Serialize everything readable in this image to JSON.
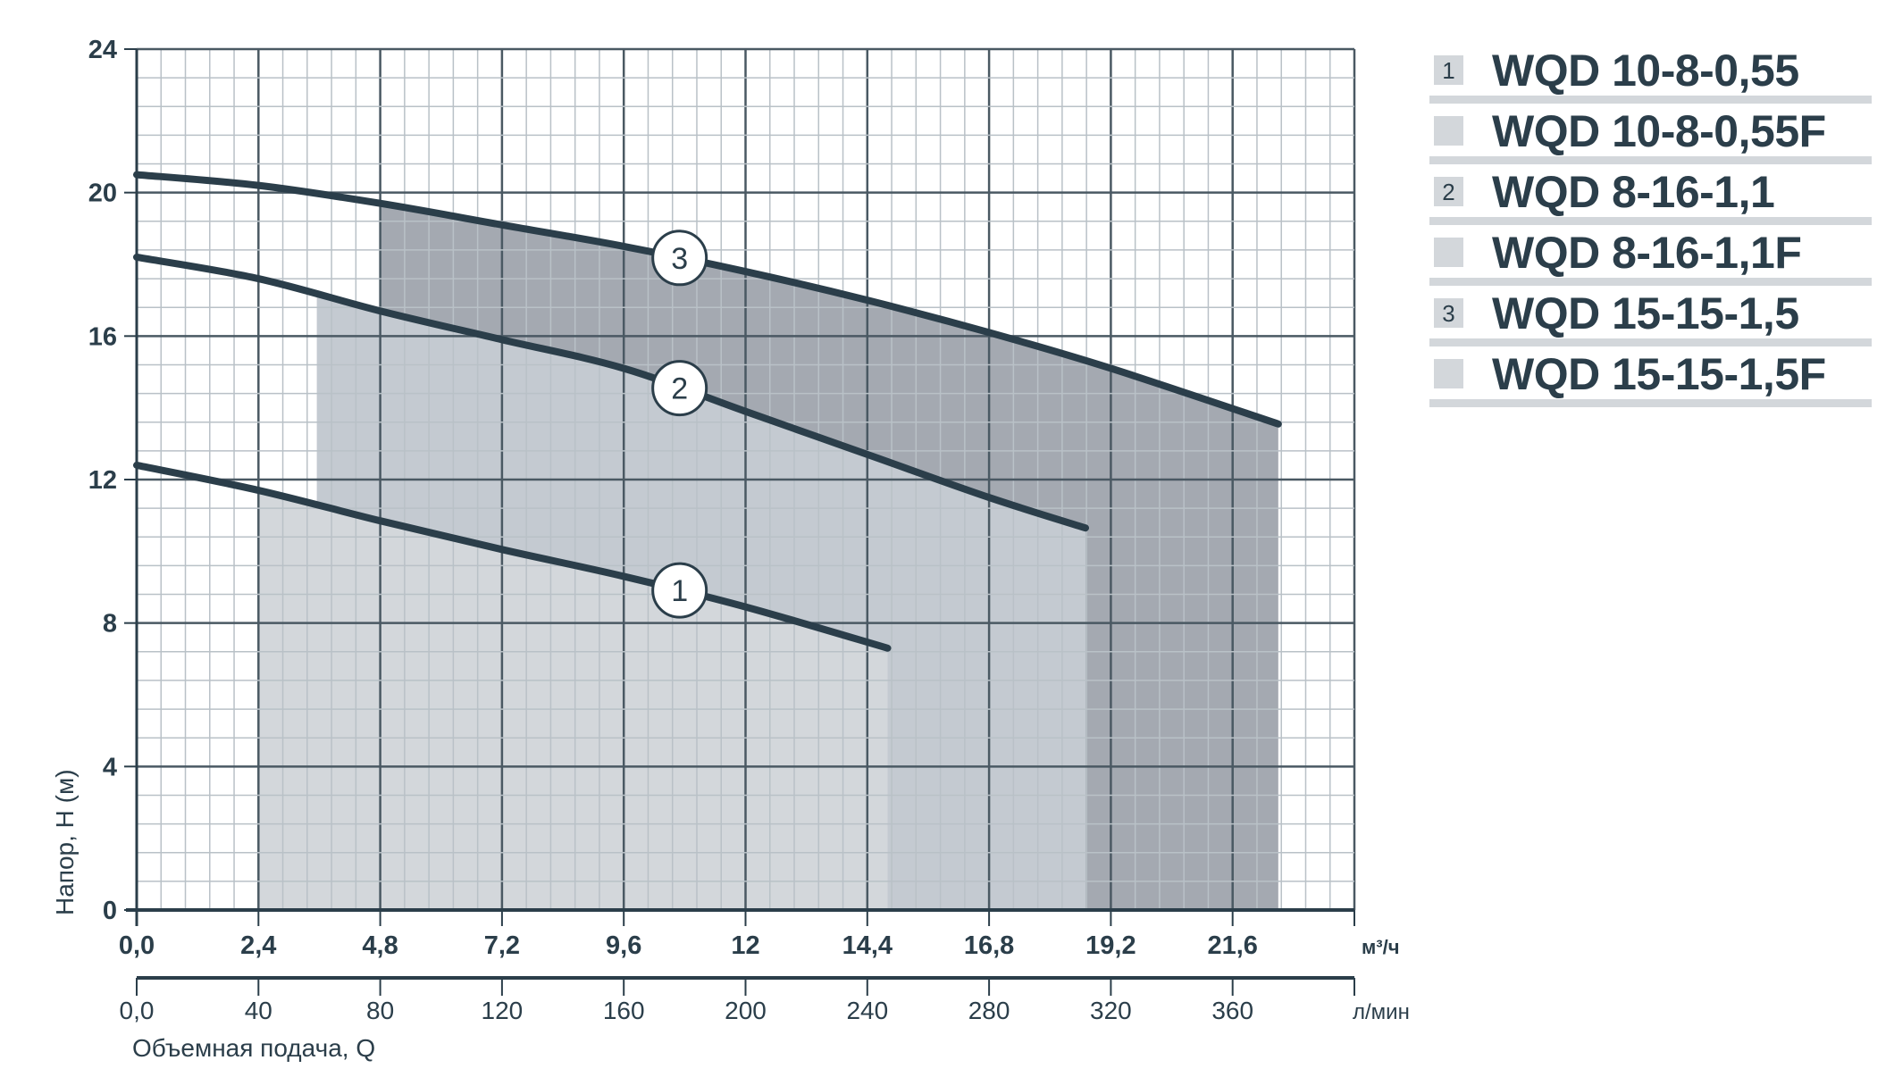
{
  "chart_data": {
    "type": "line",
    "xlabel": "Объемная подача, Q",
    "ylabel": "Напор, Н (м)",
    "x_unit": "м³/ч",
    "x2_unit": "л/мин",
    "xlim": [
      0,
      24
    ],
    "ylim": [
      0,
      24
    ],
    "x_ticks": [
      "0,0",
      "2,4",
      "4,8",
      "7,2",
      "9,6",
      "12",
      "14,4",
      "16,8",
      "19,2",
      "21,6"
    ],
    "x2_ticks": [
      "0,0",
      "40",
      "80",
      "120",
      "160",
      "200",
      "240",
      "280",
      "320",
      "360"
    ],
    "y_ticks": [
      "0",
      "4",
      "8",
      "12",
      "16",
      "20",
      "24"
    ],
    "grid": true,
    "series": [
      {
        "name": "1",
        "x": [
          0,
          2.4,
          4.8,
          7.2,
          9.6,
          12,
          14.8
        ],
        "y": [
          12.4,
          11.7,
          10.85,
          10.05,
          9.3,
          8.45,
          7.3
        ],
        "work_range": [
          2.4,
          14.8
        ],
        "fill": "#d3d7db"
      },
      {
        "name": "2",
        "x": [
          0,
          2.4,
          4.8,
          7.2,
          9.6,
          12,
          14.4,
          16.8,
          18.7
        ],
        "y": [
          18.2,
          17.6,
          16.7,
          15.9,
          15.1,
          13.9,
          12.7,
          11.5,
          10.65
        ],
        "work_range": [
          3.55,
          18.7
        ],
        "fill": "#c4cad1"
      },
      {
        "name": "3",
        "x": [
          0,
          2.4,
          4.8,
          7.2,
          9.6,
          12,
          14.4,
          16.8,
          19.2,
          22.5
        ],
        "y": [
          20.5,
          20.2,
          19.7,
          19.1,
          18.5,
          17.8,
          17.0,
          16.1,
          15.1,
          13.55
        ],
        "work_range": [
          4.8,
          22.5
        ],
        "fill": "#a4a9b1"
      }
    ],
    "label_x": 10.7
  },
  "legend": [
    {
      "num": "1",
      "label": "WQD 10-8-0,55"
    },
    {
      "num": "",
      "label": "WQD 10-8-0,55F"
    },
    {
      "num": "2",
      "label": "WQD 8-16-1,1"
    },
    {
      "num": "",
      "label": "WQD 8-16-1,1F"
    },
    {
      "num": "3",
      "label": "WQD 15-15-1,5"
    },
    {
      "num": "",
      "label": "WQD 15-15-1,5F"
    }
  ]
}
